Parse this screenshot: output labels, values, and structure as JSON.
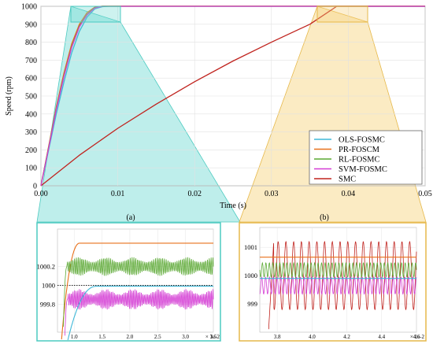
{
  "chart_data": [
    {
      "type": "line",
      "xlabel": "Time (s)",
      "ylabel": "Speed (rpm)",
      "xlim": [
        0,
        0.05
      ],
      "ylim": [
        0,
        1000
      ],
      "xticks": [
        "0.00",
        "0.01",
        "0.02",
        "0.03",
        "0.04",
        "0.05"
      ],
      "yticks": [
        "0",
        "100",
        "200",
        "300",
        "400",
        "500",
        "600",
        "700",
        "800",
        "900",
        "1000"
      ],
      "grid": true,
      "legend_position": "bottom-right",
      "series": [
        {
          "name": "OLS-FOSMC",
          "color": "#3fb8d8",
          "x": [
            0,
            0.001,
            0.002,
            0.003,
            0.004,
            0.005,
            0.006,
            0.007,
            0.008,
            0.009,
            0.01,
            0.05
          ],
          "values": [
            0,
            200,
            400,
            580,
            740,
            860,
            940,
            985,
            998,
            1000,
            1000,
            1000
          ]
        },
        {
          "name": "PR-FOSCM",
          "color": "#e8701a",
          "x": [
            0,
            0.001,
            0.002,
            0.003,
            0.004,
            0.005,
            0.006,
            0.007,
            0.008,
            0.009,
            0.01,
            0.05
          ],
          "values": [
            0,
            220,
            440,
            630,
            790,
            900,
            965,
            995,
            1001,
            1001,
            1001,
            1001
          ]
        },
        {
          "name": "RL-FOSMC",
          "color": "#5aa832",
          "x": [
            0,
            0.001,
            0.002,
            0.003,
            0.004,
            0.005,
            0.006,
            0.007,
            0.008,
            0.009,
            0.01,
            0.05
          ],
          "values": [
            0,
            215,
            430,
            615,
            775,
            890,
            955,
            992,
            1000,
            1000,
            1000,
            1000
          ]
        },
        {
          "name": "SVM-FOSMC",
          "color": "#d43cd4",
          "x": [
            0,
            0.001,
            0.002,
            0.003,
            0.004,
            0.005,
            0.006,
            0.007,
            0.008,
            0.009,
            0.01,
            0.05
          ],
          "values": [
            0,
            210,
            425,
            610,
            770,
            885,
            952,
            990,
            999.9,
            999.9,
            999.9,
            999.9
          ]
        },
        {
          "name": "SMC",
          "color": "#c0231e",
          "x": [
            0,
            0.005,
            0.01,
            0.015,
            0.02,
            0.025,
            0.03,
            0.035,
            0.0385,
            0.05
          ],
          "values": [
            0,
            170,
            320,
            455,
            580,
            695,
            800,
            900,
            1000,
            1000
          ]
        }
      ]
    },
    {
      "type": "line",
      "caption": "(a)",
      "xunit_label": "× 1e-2",
      "xlim": [
        0.7,
        3.5
      ],
      "ylim": [
        999.5,
        1000.6
      ],
      "xticks": [
        "1.0",
        "1.5",
        "2.0",
        "2.5",
        "3.0",
        "3.5"
      ],
      "yticks": [
        "1000.2",
        "1000",
        "999.8"
      ],
      "reference": 1000,
      "series": [
        {
          "name": "PR-FOSCM",
          "color": "#e8701a",
          "mean": 1000.45,
          "amplitude": 0.005
        },
        {
          "name": "RL-FOSMC",
          "color": "#5aa832",
          "mean": 1000.2,
          "amplitude": 0.1
        },
        {
          "name": "SVM-FOSMC",
          "color": "#d43cd4",
          "mean": 999.85,
          "amplitude": 0.11
        },
        {
          "name": "OLS-FOSMC",
          "color": "#3fb8d8",
          "mean": 999.99,
          "amplitude": 0.004
        }
      ]
    },
    {
      "type": "line",
      "caption": "(b)",
      "xunit_label": "× 1e-2",
      "xlim": [
        3.7,
        4.6
      ],
      "ylim": [
        998,
        1001.7
      ],
      "xticks": [
        "3.8",
        "4.0",
        "4.2",
        "4.4",
        "4.6"
      ],
      "yticks": [
        "1001",
        "1000",
        "999"
      ],
      "series": [
        {
          "name": "SMC",
          "color": "#c0231e",
          "mean": 1000,
          "amplitude": 1.2
        },
        {
          "name": "PR-FOSCM",
          "color": "#e8701a",
          "mean": 1000.65,
          "amplitude": 0.02
        },
        {
          "name": "RL-FOSMC",
          "color": "#5aa832",
          "mean": 1000.2,
          "amplitude": 0.25
        },
        {
          "name": "SVM-FOSMC",
          "color": "#d43cd4",
          "mean": 999.65,
          "amplitude": 0.3
        },
        {
          "name": "OLS-FOSMC",
          "color": "#3fb8d8",
          "mean": 999.9,
          "amplitude": 0.03
        }
      ]
    }
  ]
}
